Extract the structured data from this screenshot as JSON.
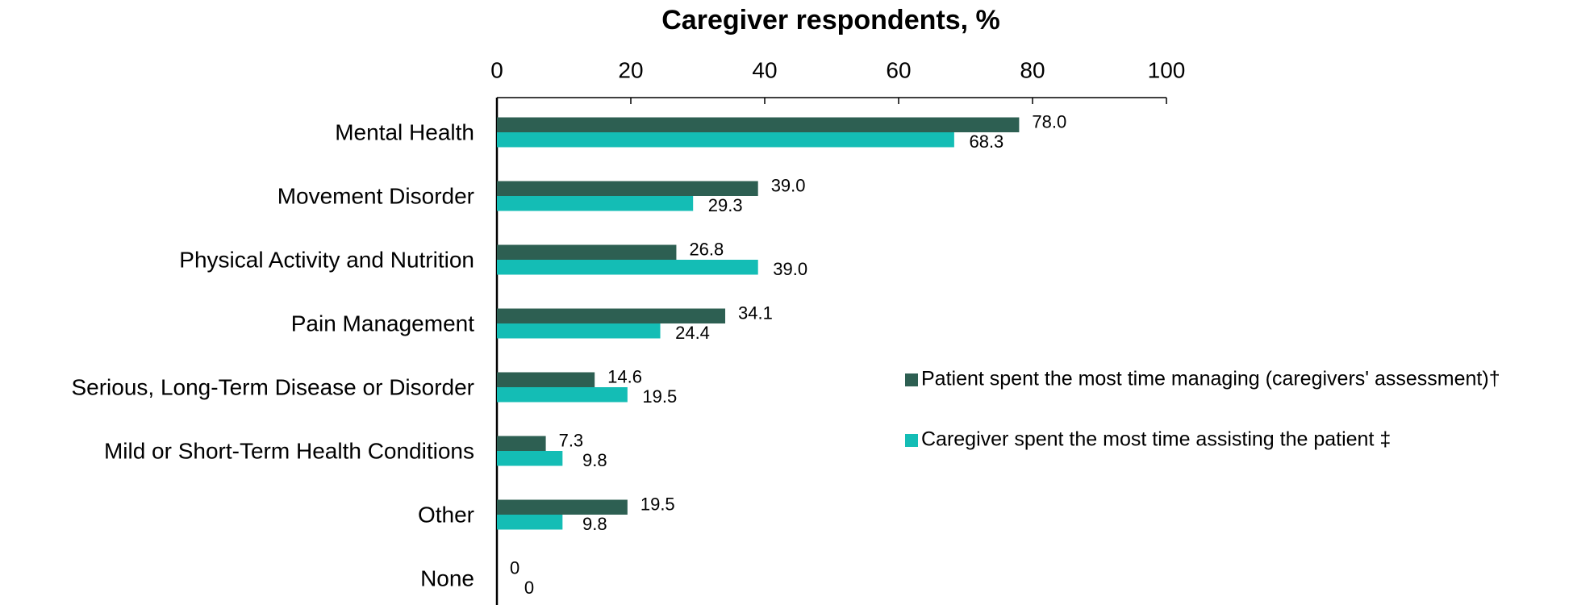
{
  "chart_data": {
    "type": "bar",
    "orientation": "horizontal",
    "title": "Caregiver respondents, %",
    "categories": [
      "Mental Health",
      "Movement Disorder",
      "Physical Activity and Nutrition",
      "Pain Management",
      "Serious, Long-Term Disease or Disorder",
      "Mild or Short-Term Health Conditions",
      "Other",
      "None"
    ],
    "series": [
      {
        "name": "Patient spent the most time managing (caregivers' assessment)†",
        "color": "#2d5f52",
        "values": [
          78.0,
          39.0,
          26.8,
          34.1,
          14.6,
          7.3,
          19.5,
          0
        ],
        "value_labels": [
          "78.0",
          "39.0",
          "26.8",
          "34.1",
          "14.6",
          "7.3",
          "19.5",
          "0"
        ]
      },
      {
        "name": "Caregiver spent the most time assisting the patient ‡",
        "color": "#14bdb5",
        "values": [
          68.3,
          29.3,
          39.0,
          24.4,
          19.5,
          9.8,
          9.8,
          0
        ],
        "value_labels": [
          "68.3",
          "29.3",
          "39.0",
          "24.4",
          "19.5",
          "9.8",
          "9.8",
          "0"
        ]
      }
    ],
    "xlim": [
      0,
      100
    ],
    "xticks": [
      0,
      20,
      40,
      60,
      80,
      100
    ],
    "grid": false,
    "legend": "right"
  }
}
